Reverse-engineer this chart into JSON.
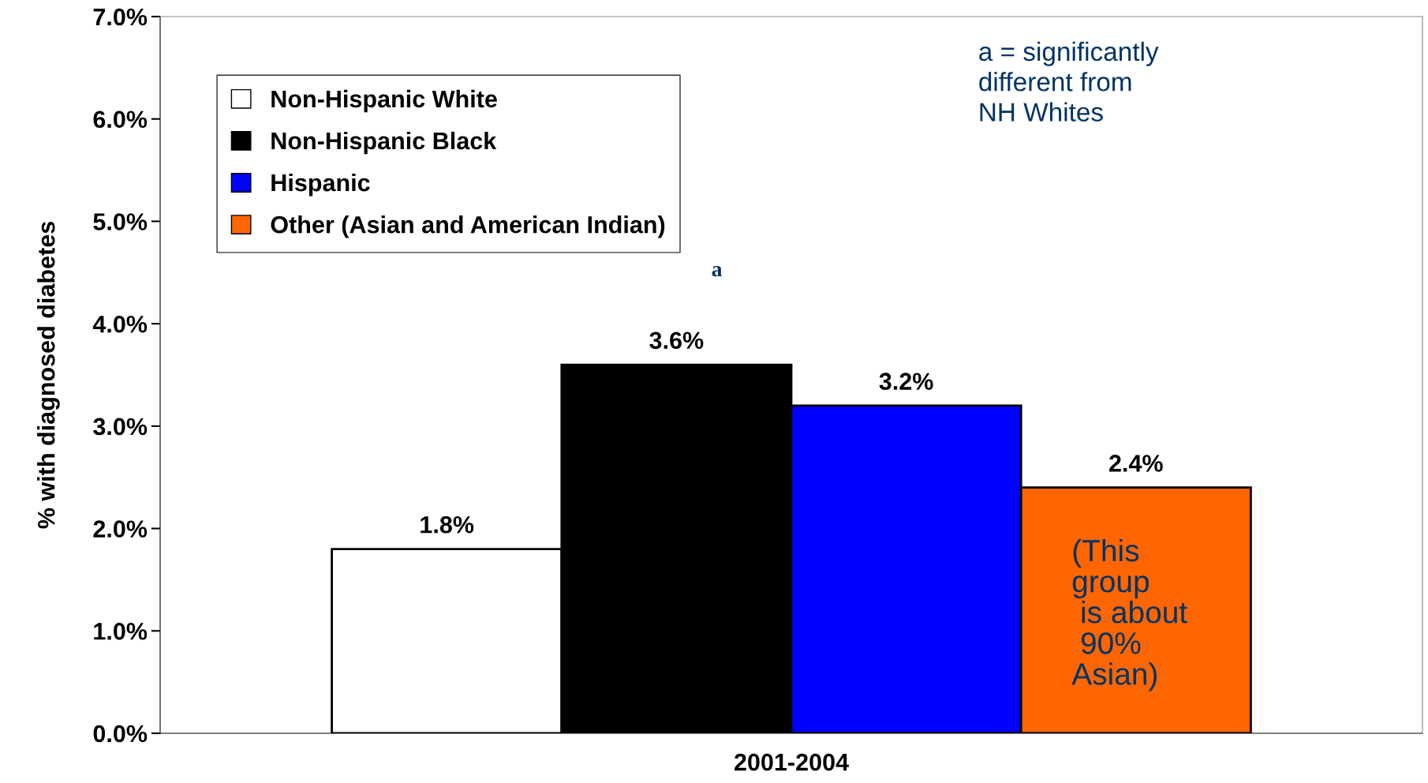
{
  "chart_data": {
    "type": "bar",
    "ylabel": "% with diagnosed diabetes",
    "categories": [
      "2001-2004"
    ],
    "series": [
      {
        "name": "Non-Hispanic White",
        "color": "#ffffff",
        "values": [
          1.8
        ],
        "value_labels": [
          "1.8%"
        ]
      },
      {
        "name": "Non-Hispanic Black",
        "color": "#000000",
        "values": [
          3.6
        ],
        "value_labels": [
          "3.6%"
        ]
      },
      {
        "name": "Hispanic",
        "color": "#0000ff",
        "values": [
          3.2
        ],
        "value_labels": [
          "3.2%"
        ]
      },
      {
        "name": "Other (Asian and American Indian)",
        "color": "#ff6600",
        "values": [
          2.4
        ],
        "value_labels": [
          "2.4%"
        ]
      }
    ],
    "ylim": [
      0,
      7
    ],
    "yticks": [
      {
        "value": 0,
        "label": "0.0%"
      },
      {
        "value": 1,
        "label": "1.0%"
      },
      {
        "value": 2,
        "label": "2.0%"
      },
      {
        "value": 3,
        "label": "3.0%"
      },
      {
        "value": 4,
        "label": "4.0%"
      },
      {
        "value": 5,
        "label": "5.0%"
      },
      {
        "value": 6,
        "label": "6.0%"
      },
      {
        "value": 7,
        "label": "7.0%"
      }
    ],
    "annotations": [
      "a = significantly different from NH Whites",
      "a",
      "(This\ngroup\n is about\n 90%\nAsian)"
    ],
    "legend": "top left",
    "grid": false
  }
}
